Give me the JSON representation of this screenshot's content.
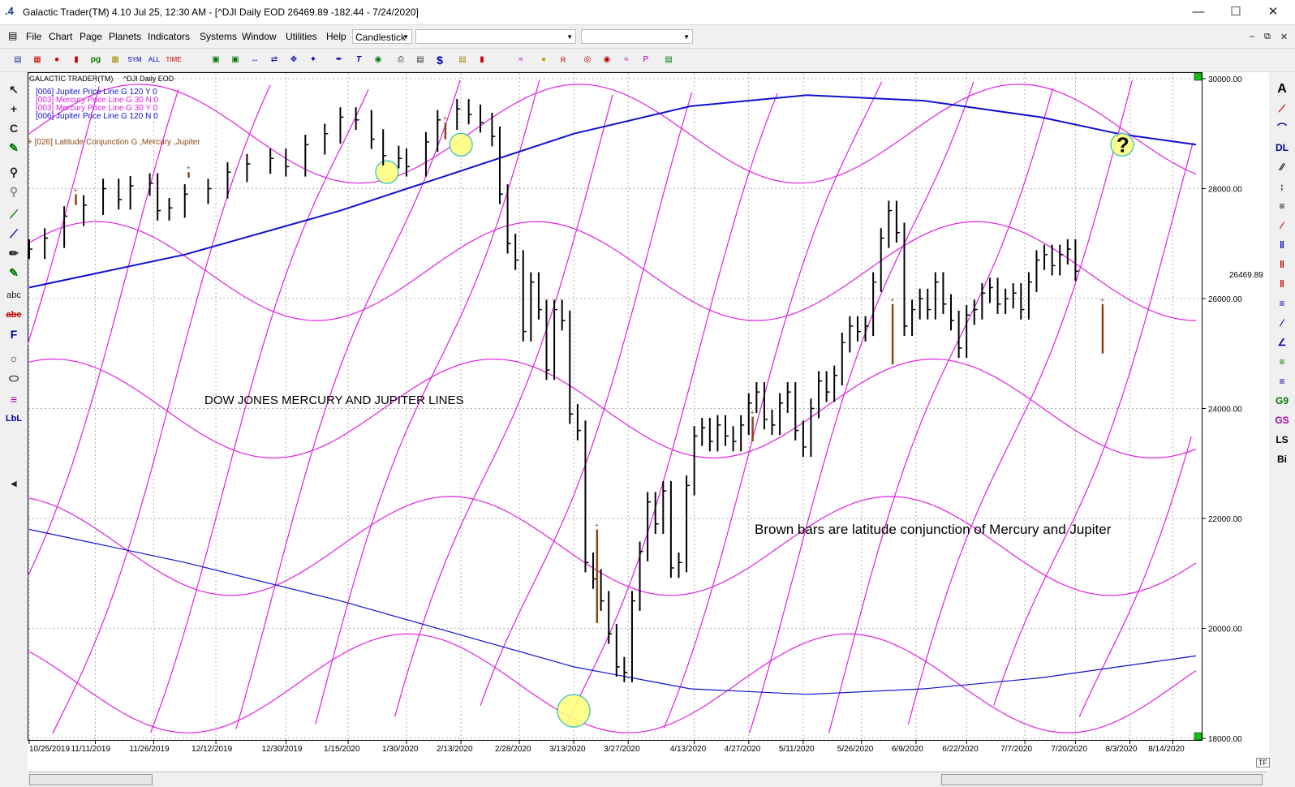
{
  "window": {
    "title": "Galactic Trader(TM) 4.10 Jul 25,  12:30 AM - [^DJI Daily EOD  26469.89    -182.44 - 7/24/2020]",
    "app_icon": ".4",
    "minimize_icon": "minimize-icon",
    "maximize_icon": "maximize-icon",
    "close_icon": "close-icon"
  },
  "menubar": {
    "items": [
      "File",
      "Chart",
      "Page",
      "Planets",
      "Indicators",
      "Systems",
      "Window",
      "Utilities",
      "Help"
    ],
    "chart_style_combo": "Candlestick",
    "combo2": "",
    "combo3": ""
  },
  "chart_data": {
    "type": "line",
    "title": "DOW JONES MERCURY AND JUPITER LINES",
    "header_left": "GALACTIC TRADER(TM)",
    "header_symbol": "^DJI Daily EOD",
    "legend": [
      {
        "label": "[006] Jupiter Price Line G 120 Y 0",
        "color": "#1010d0"
      },
      {
        "label": "[003] Mercury Price Line G 30 N 0",
        "color": "#e020e0"
      },
      {
        "label": "[003] Mercury Price Line G 30 Y 0",
        "color": "#e020e0"
      },
      {
        "label": "[006] Jupiter Price Line G 120 N 0",
        "color": "#1010d0"
      }
    ],
    "latitude_label": "+ [026] Latitude Conjunction G ,Mercury ,Jupiter",
    "annotation": "Brown bars are latitude conjunction of Mercury and Jupiter",
    "question_mark": "?",
    "last_price_label": "26469.89",
    "ylim": [
      18000,
      30000
    ],
    "y_ticks": [
      30000,
      28000,
      26000,
      24000,
      22000,
      20000,
      18000
    ],
    "y_tick_labels": [
      "30000.00",
      "28000.00",
      "26000.00",
      "24000.00",
      "22000.00",
      "20000.00",
      "18000.00"
    ],
    "x_tick_labels": [
      "10/25/2019",
      "11/11/2019",
      "11/26/2019",
      "12/12/2019",
      "12/30/2019",
      "1/15/2020",
      "1/30/2020",
      "2/13/2020",
      "2/28/2020",
      "3/13/2020",
      "3/27/2020",
      "4/13/2020",
      "4/27/2020",
      "5/11/2020",
      "5/26/2020",
      "6/9/2020",
      "6/22/2020",
      "7/7/2020",
      "7/20/2020",
      "8/3/2020",
      "8/14/2020"
    ],
    "x_tick_days": [
      0,
      17,
      32,
      48,
      66,
      82,
      97,
      111,
      126,
      140,
      154,
      171,
      185,
      199,
      214,
      228,
      241,
      256,
      269,
      283,
      294
    ],
    "x_lim_days": [
      0,
      300
    ],
    "colors": {
      "price": "#000000",
      "brown": "#8b4513",
      "jupiter": "#1010d0",
      "mercury": "#e020e0",
      "highlight": "#ffff80",
      "highlight_border": "#40c0c0"
    },
    "price_series": {
      "name": "^DJI",
      "points": [
        {
          "day": 0,
          "value": 26900
        },
        {
          "day": 4,
          "value": 27100
        },
        {
          "day": 9,
          "value": 27500
        },
        {
          "day": 14,
          "value": 27700
        },
        {
          "day": 19,
          "value": 28000
        },
        {
          "day": 23,
          "value": 27800
        },
        {
          "day": 26,
          "value": 28050
        },
        {
          "day": 31,
          "value": 28100
        },
        {
          "day": 33,
          "value": 27600
        },
        {
          "day": 36,
          "value": 27650
        },
        {
          "day": 40,
          "value": 27900
        },
        {
          "day": 46,
          "value": 28000
        },
        {
          "day": 51,
          "value": 28300
        },
        {
          "day": 56,
          "value": 28450
        },
        {
          "day": 62,
          "value": 28550
        },
        {
          "day": 66,
          "value": 28400
        },
        {
          "day": 71,
          "value": 28800
        },
        {
          "day": 76,
          "value": 29000
        },
        {
          "day": 80,
          "value": 29300
        },
        {
          "day": 84,
          "value": 29250
        },
        {
          "day": 88,
          "value": 28900
        },
        {
          "day": 91,
          "value": 28600
        },
        {
          "day": 95,
          "value": 28550
        },
        {
          "day": 97,
          "value": 28400
        },
        {
          "day": 102,
          "value": 28850
        },
        {
          "day": 105,
          "value": 29250
        },
        {
          "day": 110,
          "value": 29450
        },
        {
          "day": 113,
          "value": 29350
        },
        {
          "day": 116,
          "value": 29200
        },
        {
          "day": 119,
          "value": 28950
        },
        {
          "day": 121,
          "value": 27900
        },
        {
          "day": 123,
          "value": 27000
        },
        {
          "day": 125,
          "value": 26700
        },
        {
          "day": 127,
          "value": 25400
        },
        {
          "day": 129,
          "value": 26300
        },
        {
          "day": 131,
          "value": 25800
        },
        {
          "day": 133,
          "value": 24700
        },
        {
          "day": 135,
          "value": 25800
        },
        {
          "day": 137,
          "value": 25600
        },
        {
          "day": 139,
          "value": 23900
        },
        {
          "day": 141,
          "value": 23600
        },
        {
          "day": 143,
          "value": 21200
        },
        {
          "day": 145,
          "value": 20900
        },
        {
          "day": 147,
          "value": 20500
        },
        {
          "day": 149,
          "value": 19900
        },
        {
          "day": 151,
          "value": 19300
        },
        {
          "day": 153,
          "value": 19200
        },
        {
          "day": 155,
          "value": 20500
        },
        {
          "day": 157,
          "value": 21400
        },
        {
          "day": 159,
          "value": 22300
        },
        {
          "day": 161,
          "value": 21900
        },
        {
          "day": 163,
          "value": 22500
        },
        {
          "day": 165,
          "value": 21100
        },
        {
          "day": 167,
          "value": 21200
        },
        {
          "day": 169,
          "value": 22600
        },
        {
          "day": 171,
          "value": 23500
        },
        {
          "day": 173,
          "value": 23650
        },
        {
          "day": 175,
          "value": 23400
        },
        {
          "day": 177,
          "value": 23700
        },
        {
          "day": 179,
          "value": 23500
        },
        {
          "day": 181,
          "value": 23400
        },
        {
          "day": 183,
          "value": 23700
        },
        {
          "day": 185,
          "value": 24100
        },
        {
          "day": 187,
          "value": 24300
        },
        {
          "day": 189,
          "value": 23800
        },
        {
          "day": 191,
          "value": 23700
        },
        {
          "day": 193,
          "value": 24100
        },
        {
          "day": 195,
          "value": 24300
        },
        {
          "day": 197,
          "value": 23600
        },
        {
          "day": 199,
          "value": 23300
        },
        {
          "day": 201,
          "value": 24000
        },
        {
          "day": 203,
          "value": 24500
        },
        {
          "day": 205,
          "value": 24300
        },
        {
          "day": 207,
          "value": 24600
        },
        {
          "day": 209,
          "value": 25200
        },
        {
          "day": 211,
          "value": 25500
        },
        {
          "day": 213,
          "value": 25400
        },
        {
          "day": 215,
          "value": 25500
        },
        {
          "day": 217,
          "value": 26300
        },
        {
          "day": 219,
          "value": 27100
        },
        {
          "day": 221,
          "value": 27600
        },
        {
          "day": 223,
          "value": 27200
        },
        {
          "day": 225,
          "value": 25500
        },
        {
          "day": 227,
          "value": 25800
        },
        {
          "day": 229,
          "value": 26000
        },
        {
          "day": 231,
          "value": 25800
        },
        {
          "day": 233,
          "value": 26300
        },
        {
          "day": 235,
          "value": 25900
        },
        {
          "day": 237,
          "value": 25600
        },
        {
          "day": 239,
          "value": 25100
        },
        {
          "day": 241,
          "value": 25700
        },
        {
          "day": 243,
          "value": 25800
        },
        {
          "day": 245,
          "value": 26100
        },
        {
          "day": 247,
          "value": 26200
        },
        {
          "day": 249,
          "value": 25900
        },
        {
          "day": 251,
          "value": 26000
        },
        {
          "day": 253,
          "value": 26100
        },
        {
          "day": 255,
          "value": 25800
        },
        {
          "day": 257,
          "value": 26300
        },
        {
          "day": 259,
          "value": 26700
        },
        {
          "day": 261,
          "value": 26800
        },
        {
          "day": 263,
          "value": 26600
        },
        {
          "day": 265,
          "value": 26800
        },
        {
          "day": 267,
          "value": 26900
        },
        {
          "day": 269,
          "value": 26500
        }
      ]
    },
    "latitude_conjunction_bars": [
      {
        "day": 12,
        "high": 27900,
        "low": 27700
      },
      {
        "day": 41,
        "high": 28300,
        "low": 28200
      },
      {
        "day": 107,
        "high": 29200,
        "low": 28900
      },
      {
        "day": 146,
        "high": 21800,
        "low": 20100
      },
      {
        "day": 186,
        "high": 23850,
        "low": 23400
      },
      {
        "day": 222,
        "high": 25900,
        "low": 24800
      },
      {
        "day": 276,
        "high": 25900,
        "low": 25000
      }
    ],
    "jupiter_lines": [
      {
        "name": "[006] Jupiter Price Line G 120 Y 0",
        "days": [
          0,
          40,
          80,
          110,
          140,
          170,
          200,
          230,
          260,
          280,
          300
        ],
        "values": [
          26200,
          26800,
          27600,
          28300,
          29000,
          29500,
          29700,
          29600,
          29300,
          29000,
          28800
        ]
      },
      {
        "name": "[006] Jupiter Price Line G 120 N 0",
        "days": [
          0,
          40,
          80,
          110,
          140,
          170,
          200,
          230,
          260,
          280,
          300
        ],
        "values": [
          21800,
          21200,
          20500,
          19900,
          19300,
          18900,
          18800,
          18900,
          19100,
          19300,
          19500
        ]
      }
    ],
    "mercury_waves": {
      "note": "Mercury price lines: rising diagonal lines plus wave bands",
      "diagonal_count": 16,
      "band_levels": [
        29000,
        26500,
        24000,
        21500,
        19000
      ]
    },
    "highlight_circles": [
      {
        "day": 92,
        "value": 28300
      },
      {
        "day": 111,
        "value": 28800
      },
      {
        "day": 140,
        "value": 18500
      },
      {
        "day": 281,
        "value": 28800
      }
    ]
  },
  "bottom": {
    "tf_label": "TF"
  },
  "left_tools": [
    "pointer-icon",
    "crosshair-icon",
    "c-icon",
    "pencil-icon",
    "zoom-in-icon",
    "zoom-out-icon",
    "trend-line-icon",
    "line-icon",
    "pen-icon",
    "pencil2-icon",
    "abc",
    "erase-text-icon",
    "F",
    "circle-icon",
    "ellipse-icon",
    "lines-icon",
    "LbL"
  ],
  "right_tools": [
    "A",
    "fan-icon",
    "arc-icon",
    "DL",
    "parallel-icon",
    "bars-icon",
    "gann-icon",
    "lines2-icon",
    "grid-icon",
    "red-grid-icon",
    "channel-icon",
    "multiline-icon",
    "angle-icon",
    "gann2-icon",
    "G9",
    "GS",
    "LS",
    "Bi"
  ]
}
